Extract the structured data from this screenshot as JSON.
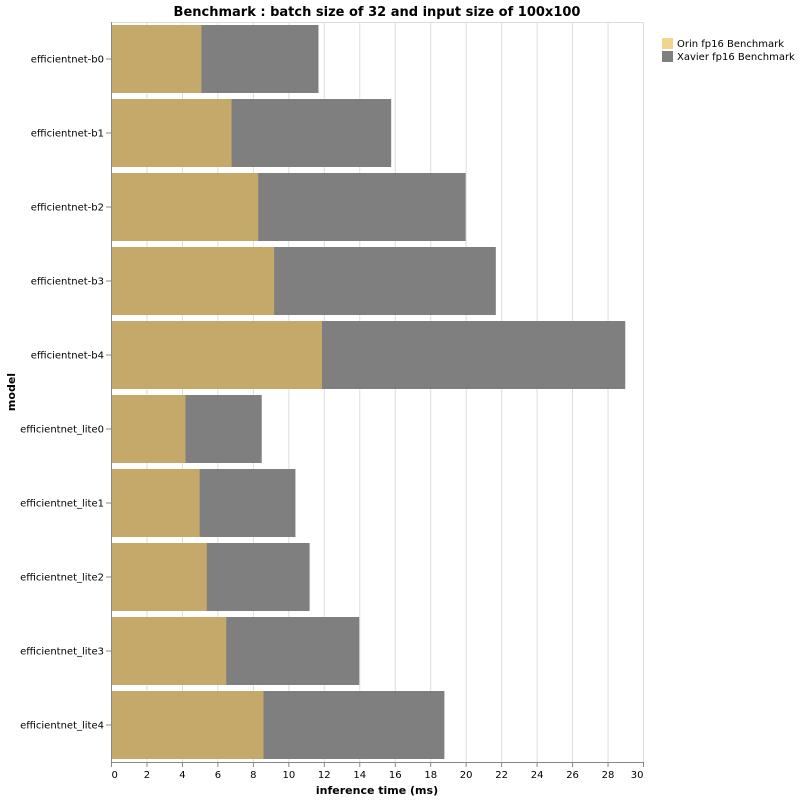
{
  "chart_data": {
    "type": "bar",
    "orientation": "horizontal",
    "stacking": "overlay",
    "title": "Benchmark : batch size of 32 and input size of 100x100",
    "xlabel": "inference time (ms)",
    "ylabel": "model",
    "xlim": [
      0,
      30
    ],
    "xticks": [
      0,
      2,
      4,
      6,
      8,
      10,
      12,
      14,
      16,
      18,
      20,
      22,
      24,
      26,
      28,
      30
    ],
    "grid": true,
    "legend_position": "top-right",
    "categories": [
      "efficientnet-b0",
      "efficientnet-b1",
      "efficientnet-b2",
      "efficientnet-b3",
      "efficientnet-b4",
      "efficientnet_lite0",
      "efficientnet_lite1",
      "efficientnet_lite2",
      "efficientnet_lite3",
      "efficientnet_lite4"
    ],
    "series": [
      {
        "name": "Xavier fp16 Benchmark",
        "color": "#7f7f7f",
        "values": [
          11.7,
          15.8,
          20.0,
          21.7,
          29.0,
          8.5,
          10.4,
          11.2,
          14.0,
          18.8
        ]
      },
      {
        "name": "Orin fp16 Benchmark",
        "color": "#c4a96a",
        "legend_color": "#f2d48f",
        "values": [
          5.1,
          6.8,
          8.3,
          9.2,
          11.9,
          4.2,
          5.0,
          5.4,
          6.5,
          8.6
        ]
      }
    ],
    "legend": [
      {
        "name": "Orin fp16 Benchmark",
        "color": "#f2d48f"
      },
      {
        "name": "Xavier fp16 Benchmark",
        "color": "#7f7f7f"
      }
    ]
  }
}
